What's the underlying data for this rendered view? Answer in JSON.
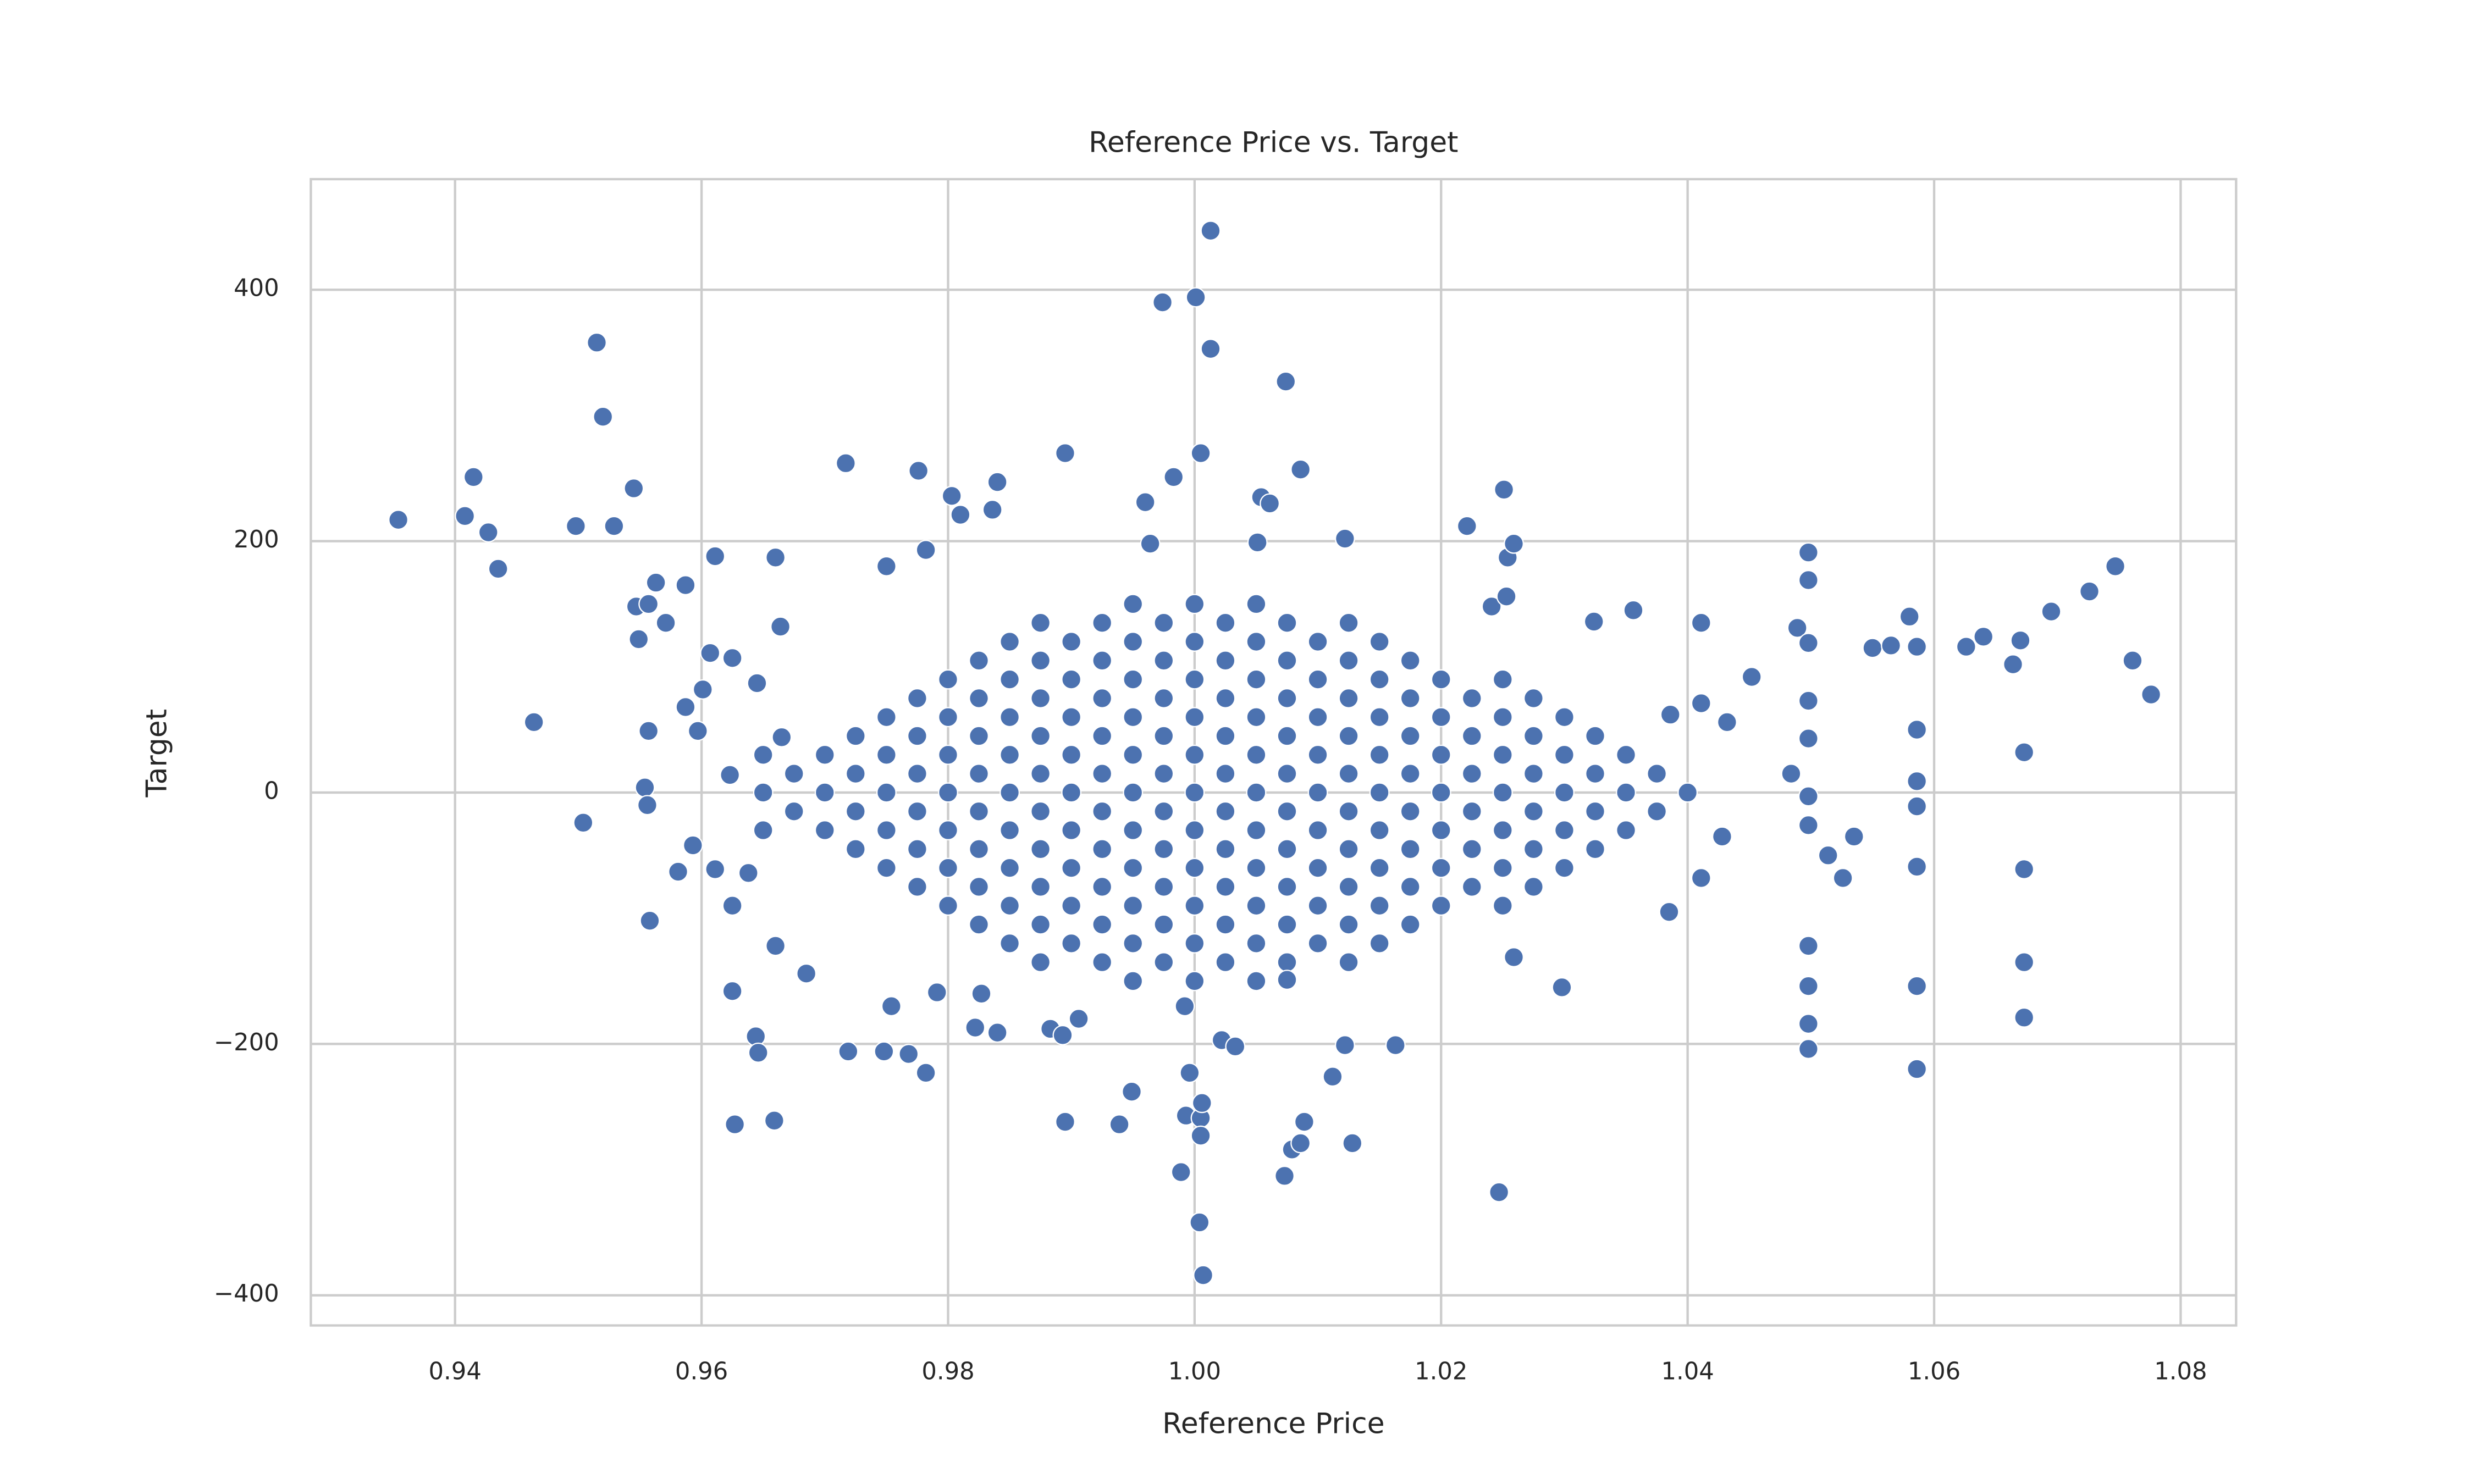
{
  "chart_data": {
    "type": "scatter",
    "title": "Reference Price vs. Target",
    "x_label": "Reference Price",
    "y_label": "Target",
    "xlim": [
      0.9283,
      1.0845
    ],
    "ylim": [
      -424,
      488
    ],
    "xticks": [
      0.94,
      0.96,
      0.98,
      {
        "value": 1,
        "label": "1.00"
      },
      1.02,
      1.04,
      1.06,
      1.08
    ],
    "yticks": [
      {
        "value": -400,
        "label": "−400"
      },
      {
        "value": -200,
        "label": "−200"
      },
      0,
      200,
      400
    ],
    "grid": true,
    "series": [
      {
        "color": "#4c72b0",
        "x": [
          0.965,
          0.965,
          0.965,
          0.9675,
          0.9675,
          0.97,
          0.97,
          0.97,
          0.9725,
          0.9725,
          0.9725,
          0.9725,
          0.975,
          0.975,
          0.975,
          0.975,
          0.975,
          0.9775,
          0.9775,
          0.9775,
          0.9775,
          0.9775,
          0.9775,
          0.98,
          0.98,
          0.98,
          0.98,
          0.98,
          0.98,
          0.98,
          0.9825,
          0.9825,
          0.9825,
          0.9825,
          0.9825,
          0.9825,
          0.9825,
          0.9825,
          0.985,
          0.985,
          0.985,
          0.985,
          0.985,
          0.985,
          0.985,
          0.985,
          0.985,
          0.9875,
          0.9875,
          0.9875,
          0.9875,
          0.9875,
          0.9875,
          0.9875,
          0.9875,
          0.9875,
          0.9875,
          0.99,
          0.99,
          0.99,
          0.99,
          0.99,
          0.99,
          0.99,
          0.99,
          0.99,
          0.9925,
          0.9925,
          0.9925,
          0.9925,
          0.9925,
          0.9925,
          0.9925,
          0.9925,
          0.9925,
          0.9925,
          0.995,
          0.995,
          0.995,
          0.995,
          0.995,
          0.995,
          0.995,
          0.995,
          0.995,
          0.995,
          0.995,
          0.9975,
          0.9975,
          0.9975,
          0.9975,
          0.9975,
          0.9975,
          0.9975,
          0.9975,
          0.9975,
          0.9975,
          1,
          1,
          1,
          1,
          1,
          1,
          1,
          1,
          1,
          1,
          1,
          1.0025,
          1.0025,
          1.0025,
          1.0025,
          1.0025,
          1.0025,
          1.0025,
          1.0025,
          1.0025,
          1.0025,
          1.005,
          1.005,
          1.005,
          1.005,
          1.005,
          1.005,
          1.005,
          1.005,
          1.005,
          1.005,
          1.005,
          1.0075,
          1.0075,
          1.0075,
          1.0075,
          1.0075,
          1.0075,
          1.0075,
          1.0075,
          1.0075,
          1.0075,
          1.01,
          1.01,
          1.01,
          1.01,
          1.01,
          1.01,
          1.01,
          1.01,
          1.01,
          1.0125,
          1.0125,
          1.0125,
          1.0125,
          1.0125,
          1.0125,
          1.0125,
          1.0125,
          1.0125,
          1.0125,
          1.015,
          1.015,
          1.015,
          1.015,
          1.015,
          1.015,
          1.015,
          1.015,
          1.015,
          1.0175,
          1.0175,
          1.0175,
          1.0175,
          1.0175,
          1.0175,
          1.0175,
          1.0175,
          1.02,
          1.02,
          1.02,
          1.02,
          1.02,
          1.02,
          1.02,
          1.0225,
          1.0225,
          1.0225,
          1.0225,
          1.0225,
          1.0225,
          1.025,
          1.025,
          1.025,
          1.025,
          1.025,
          1.025,
          1.025,
          1.0275,
          1.0275,
          1.0275,
          1.0275,
          1.0275,
          1.0275,
          1.03,
          1.03,
          1.03,
          1.03,
          1.03,
          1.0325,
          1.0325,
          1.0325,
          1.0325,
          1.035,
          1.035,
          1.035,
          1.0375,
          1.0375,
          1.04,
          0.9354,
          0.9408,
          0.9415,
          0.9427,
          0.9435,
          0.9464,
          0.9498,
          0.9504,
          0.9515,
          0.952,
          0.9529,
          0.9545,
          0.9547,
          0.9549,
          0.9557,
          0.9557,
          0.9554,
          0.9556,
          0.9558,
          0.9563,
          0.9571,
          0.9581,
          0.9587,
          0.9587,
          0.9593,
          0.9597,
          0.9601,
          0.9607,
          0.9611,
          0.9611,
          0.9625,
          0.9623,
          0.9625,
          0.9625,
          0.9627,
          0.9638,
          0.9644,
          0.9646,
          0.9645,
          0.966,
          0.9659,
          0.966,
          0.9664,
          0.9665,
          0.9685,
          0.9719,
          0.9717,
          0.9748,
          0.975,
          0.9754,
          0.9768,
          0.9776,
          0.9782,
          0.9782,
          0.9791,
          0.9803,
          0.981,
          0.9822,
          0.9827,
          0.984,
          0.9836,
          0.984,
          0.9895,
          0.9883,
          0.9893,
          0.9895,
          0.9906,
          0.9939,
          0.9949,
          0.996,
          0.9964,
          0.9974,
          0.9983,
          0.9989,
          0.9992,
          0.9993,
          0.9996,
          1.0001,
          1.0005,
          1.0004,
          1.0005,
          1.0006,
          1.0005,
          1.0007,
          1.0013,
          1.0013,
          1.0022,
          1.0033,
          1.0051,
          1.0054,
          1.0061,
          1.0074,
          1.0075,
          1.0073,
          1.0079,
          1.0086,
          1.0086,
          1.0089,
          1.0112,
          1.0122,
          1.0122,
          1.0128,
          1.0163,
          1.0221,
          1.0241,
          1.0247,
          1.0251,
          1.0254,
          1.0253,
          1.0259,
          1.0259,
          1.0298,
          1.0324,
          1.0356,
          1.0386,
          1.0385,
          1.0411,
          1.0411,
          1.0411,
          1.0428,
          1.0432,
          1.0452,
          1.0484,
          1.0489,
          1.0498,
          1.0498,
          1.0498,
          1.0498,
          1.0498,
          1.0498,
          1.0498,
          1.0498,
          1.0498,
          1.0498,
          1.0498,
          1.0514,
          1.0526,
          1.0535,
          1.055,
          1.0565,
          1.058,
          1.0586,
          1.0586,
          1.0586,
          1.0586,
          1.0586,
          1.0586,
          1.0586,
          1.0626,
          1.064,
          1.0664,
          1.067,
          1.0673,
          1.0673,
          1.0673,
          1.0673,
          1.0695,
          1.0726,
          1.0747,
          1.0761,
          1.0776
        ],
        "values": [
          0,
          30,
          -30,
          15,
          -15,
          0,
          30,
          -30,
          15,
          -15,
          45,
          -45,
          0,
          30,
          -30,
          60,
          -60,
          15,
          -15,
          45,
          -45,
          75,
          -75,
          0,
          30,
          -30,
          60,
          -60,
          90,
          -90,
          15,
          -15,
          45,
          -45,
          75,
          -75,
          105,
          -105,
          0,
          30,
          -30,
          60,
          -60,
          90,
          -90,
          120,
          -120,
          15,
          -15,
          45,
          -45,
          75,
          -75,
          105,
          -105,
          135,
          -135,
          0,
          30,
          -30,
          60,
          -60,
          90,
          -90,
          120,
          -120,
          15,
          -15,
          45,
          -45,
          75,
          -75,
          105,
          -105,
          135,
          -135,
          0,
          30,
          -30,
          60,
          -60,
          90,
          -90,
          120,
          -120,
          150,
          -150,
          15,
          -15,
          45,
          -45,
          75,
          -75,
          105,
          -105,
          135,
          -135,
          0,
          30,
          -30,
          60,
          -60,
          90,
          -90,
          120,
          -120,
          150,
          -150,
          15,
          -15,
          45,
          -45,
          75,
          -75,
          105,
          -105,
          135,
          -135,
          0,
          30,
          -30,
          60,
          -60,
          90,
          -90,
          120,
          -120,
          150,
          -150,
          15,
          -15,
          45,
          -45,
          75,
          -75,
          105,
          -105,
          135,
          -135,
          0,
          30,
          -30,
          60,
          -60,
          90,
          -90,
          120,
          -120,
          15,
          -15,
          45,
          -45,
          75,
          -75,
          105,
          -105,
          135,
          -135,
          0,
          30,
          -30,
          60,
          -60,
          90,
          -90,
          120,
          -120,
          15,
          -15,
          45,
          -45,
          75,
          -75,
          105,
          -105,
          0,
          30,
          -30,
          60,
          -60,
          90,
          -90,
          15,
          -15,
          45,
          -45,
          75,
          -75,
          0,
          30,
          -30,
          60,
          -60,
          90,
          -90,
          15,
          -15,
          45,
          -45,
          75,
          -75,
          0,
          30,
          -30,
          60,
          -60,
          15,
          -15,
          45,
          -45,
          0,
          30,
          -30,
          15,
          -15,
          0,
          217,
          220,
          251,
          207,
          178,
          56,
          212,
          -24,
          358,
          299,
          212,
          242,
          148,
          122,
          150,
          49,
          4,
          -10,
          -102,
          167,
          135,
          -63,
          165,
          68,
          -42,
          49,
          82,
          111,
          188,
          -61,
          107,
          14,
          -90,
          -158,
          -264,
          -64,
          -194,
          -207,
          87,
          187,
          -261,
          -122,
          132,
          44,
          -144,
          -206,
          262,
          -206,
          180,
          -170,
          -208,
          256,
          -223,
          193,
          -159,
          236,
          221,
          -187,
          -160,
          -191,
          225,
          247,
          270,
          -188,
          -193,
          -262,
          -180,
          -264,
          -238,
          231,
          198,
          390,
          251,
          -302,
          -170,
          -257,
          -223,
          394,
          270,
          -342,
          -259,
          -247,
          -273,
          -384,
          447,
          353,
          -197,
          -202,
          199,
          235,
          230,
          327,
          -149,
          -305,
          -284,
          257,
          -279,
          -262,
          -226,
          -201,
          202,
          -279,
          -201,
          212,
          148,
          -318,
          241,
          187,
          156,
          198,
          -131,
          -155,
          136,
          145,
          62,
          -95,
          135,
          71,
          -68,
          -35,
          56,
          92,
          15,
          131,
          191,
          169,
          119,
          73,
          43,
          -3,
          -26,
          -122,
          -154,
          -184,
          -204,
          -50,
          -68,
          -35,
          115,
          117,
          140,
          116,
          50,
          9,
          -11,
          -59,
          -154,
          -220,
          116,
          124,
          102,
          121,
          32,
          -61,
          -135,
          -179,
          144,
          160,
          180,
          105,
          78
        ]
      }
    ]
  }
}
